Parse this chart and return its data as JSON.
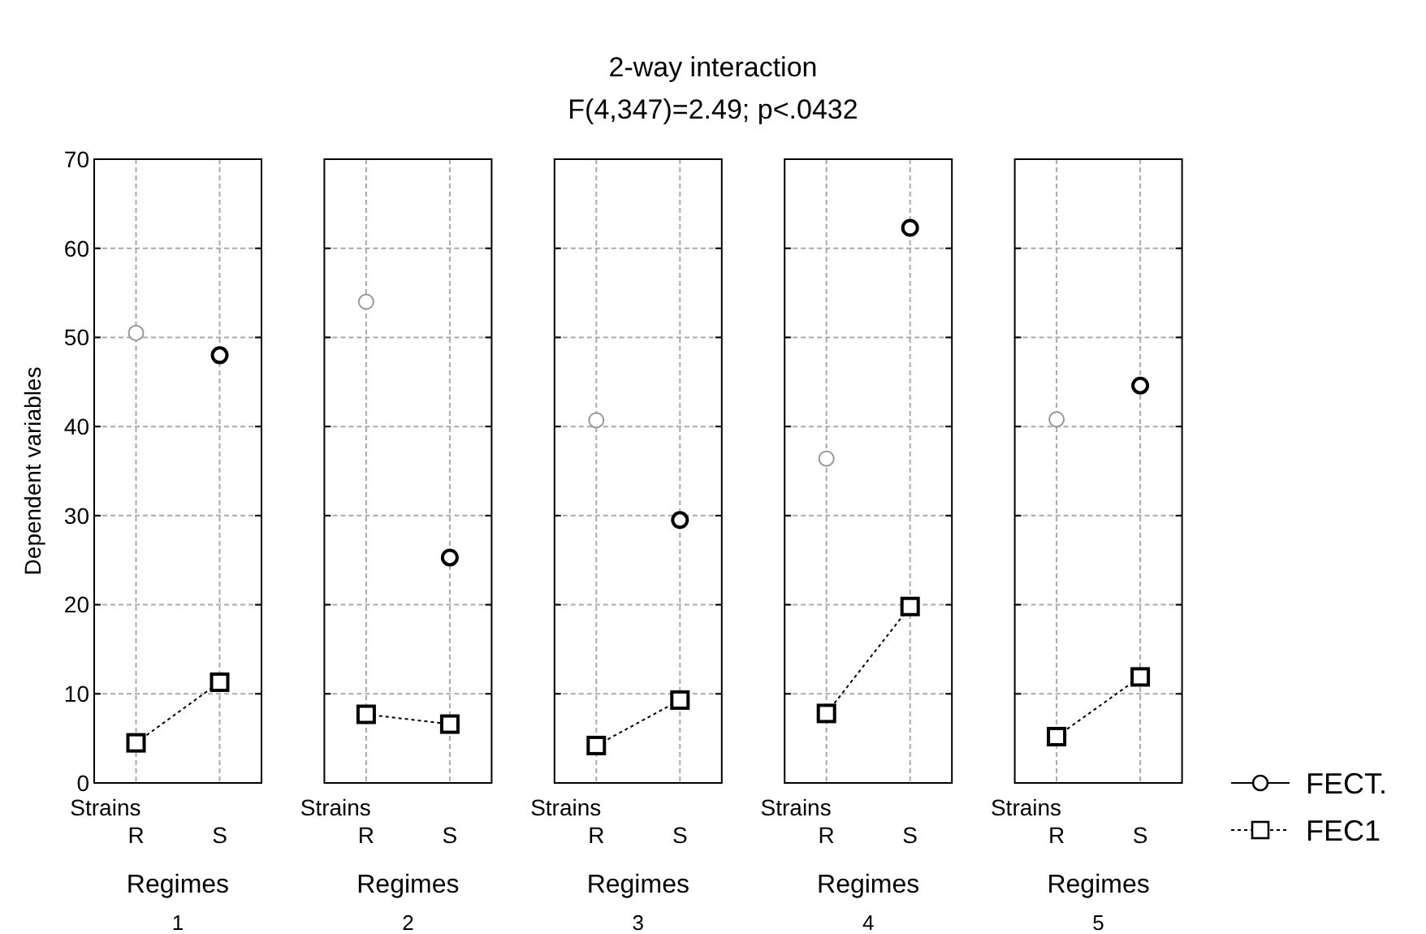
{
  "chart_data": [
    {
      "type": "line",
      "ylabel": "Dependent variables",
      "xlabel": "Regimes",
      "annotations": [
        "Strains",
        "1"
      ],
      "categories": [
        "R",
        "S"
      ],
      "ylim": [
        0,
        70
      ],
      "yticks": [
        0,
        10,
        20,
        30,
        40,
        50,
        60,
        70
      ],
      "grid": true,
      "series": [
        {
          "type": "scatter",
          "marker": "circle",
          "color": "#000000",
          "colors": [
            "#999999",
            "#000000"
          ],
          "values": [
            50.5,
            48
          ]
        },
        {
          "type": "line",
          "marker": "square",
          "line_style": "dotted",
          "color": "#000000",
          "values": [
            4.5,
            11.3
          ]
        }
      ]
    },
    {
      "type": "line",
      "xlabel": "Regimes",
      "annotations": [
        "Strains",
        "2"
      ],
      "categories": [
        "R",
        "S"
      ],
      "ylim": [
        0,
        70
      ],
      "yticks": [
        0,
        10,
        20,
        30,
        40,
        50,
        60,
        70
      ],
      "grid": true,
      "tick_labels": "x",
      "series": [
        {
          "type": "scatter",
          "marker": "circle",
          "color": "#000000",
          "colors": [
            "#999999",
            "#000000"
          ],
          "values": [
            54,
            25.3
          ]
        },
        {
          "type": "line",
          "marker": "square",
          "line_style": "dotted",
          "color": "#000000",
          "values": [
            7.7,
            6.6
          ]
        }
      ]
    },
    {
      "type": "line",
      "title": "2-way interaction",
      "subtitle": "F(4,347)=2.49; p<.0432",
      "xlabel": "Regimes",
      "annotations": [
        "Strains",
        "3"
      ],
      "categories": [
        "R",
        "S"
      ],
      "ylim": [
        0,
        70
      ],
      "yticks": [
        0,
        10,
        20,
        30,
        40,
        50,
        60,
        70
      ],
      "grid": true,
      "tick_labels": "x",
      "series": [
        {
          "type": "scatter",
          "marker": "circle",
          "color": "#000000",
          "colors": [
            "#999999",
            "#000000"
          ],
          "values": [
            40.7,
            29.5
          ]
        },
        {
          "type": "line",
          "marker": "square",
          "line_style": "dotted",
          "color": "#000000",
          "values": [
            4.2,
            9.3
          ]
        }
      ]
    },
    {
      "type": "line",
      "xlabel": "Regimes",
      "annotations": [
        "Strains",
        "4"
      ],
      "categories": [
        "R",
        "S"
      ],
      "ylim": [
        0,
        70
      ],
      "yticks": [
        0,
        10,
        20,
        30,
        40,
        50,
        60,
        70
      ],
      "grid": true,
      "tick_labels": "x",
      "series": [
        {
          "type": "scatter",
          "marker": "circle",
          "color": "#000000",
          "colors": [
            "#999999",
            "#000000"
          ],
          "values": [
            36.4,
            62.3
          ]
        },
        {
          "type": "line",
          "marker": "square",
          "line_style": "dotted",
          "color": "#000000",
          "values": [
            7.8,
            19.8
          ]
        }
      ]
    },
    {
      "type": "line",
      "xlabel": "Regimes",
      "annotations": [
        "Strains",
        "5"
      ],
      "categories": [
        "R",
        "S"
      ],
      "ylim": [
        0,
        70
      ],
      "yticks": [
        0,
        10,
        20,
        30,
        40,
        50,
        60,
        70
      ],
      "grid": true,
      "tick_labels": "x",
      "legend": "right",
      "series": [
        {
          "name": "FECT.",
          "type": "scatter",
          "marker": "circle",
          "color": "#000000",
          "colors": [
            "#999999",
            "#000000"
          ],
          "values": [
            40.8,
            44.6
          ]
        },
        {
          "name": "FEC1",
          "type": "line",
          "marker": "square",
          "line_style": "dotted",
          "color": "#000000",
          "values": [
            5.2,
            11.9
          ]
        }
      ]
    }
  ]
}
